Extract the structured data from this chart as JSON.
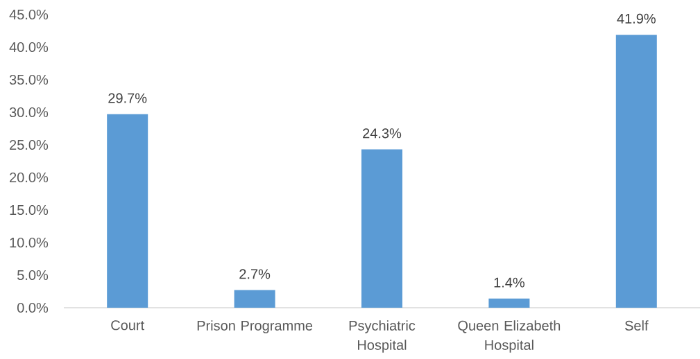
{
  "chart_data": {
    "type": "bar",
    "categories": [
      "Court",
      "Prison Programme",
      "Psychiatric Hospital",
      "Queen Elizabeth Hospital",
      "Self"
    ],
    "values": [
      29.7,
      2.7,
      24.3,
      1.4,
      41.9
    ],
    "value_labels": [
      "29.7%",
      "2.7%",
      "24.3%",
      "1.4%",
      "41.9%"
    ],
    "color": "#5b9bd5",
    "ylim": [
      0,
      45
    ],
    "yticks": [
      {
        "value": 0,
        "label": "0.0%"
      },
      {
        "value": 5,
        "label": "5.0%"
      },
      {
        "value": 10,
        "label": "10.0%"
      },
      {
        "value": 15,
        "label": "15.0%"
      },
      {
        "value": 20,
        "label": "20.0%"
      },
      {
        "value": 25,
        "label": "25.0%"
      },
      {
        "value": 30,
        "label": "30.0%"
      },
      {
        "value": 35,
        "label": "35.0%"
      },
      {
        "value": 40,
        "label": "40.0%"
      },
      {
        "value": 45,
        "label": "45.0%"
      }
    ]
  }
}
